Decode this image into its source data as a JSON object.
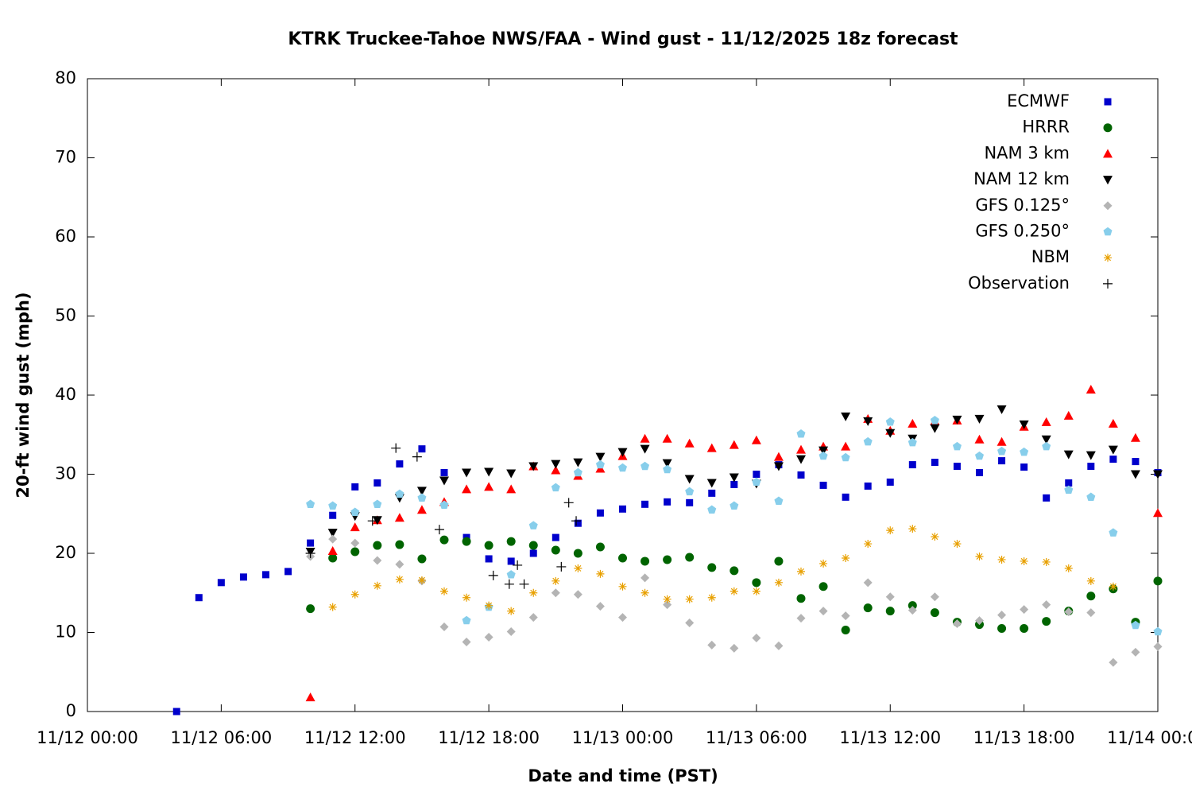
{
  "chart_data": {
    "type": "scatter",
    "title": "KTRK Truckee-Tahoe NWS/FAA - Wind gust - 11/12/2025 18z forecast",
    "xlabel": "Date and time (PST)",
    "ylabel": "20-ft wind gust (mph)",
    "xlim": [
      "11/12 00:00",
      "11/14 00:00"
    ],
    "xticks": [
      "11/12 00:00",
      "11/12 06:00",
      "11/12 12:00",
      "11/12 18:00",
      "11/13 00:00",
      "11/13 06:00",
      "11/13 12:00",
      "11/13 18:00",
      "11/14 00:00"
    ],
    "ylim": [
      0,
      80
    ],
    "yticks": [
      0,
      10,
      20,
      30,
      40,
      50,
      60,
      70,
      80
    ],
    "grid": false,
    "legend": "upper right",
    "series": [
      {
        "name": "ECMWF",
        "color": "#0000cc",
        "marker": "square",
        "x": [
          "11/12 04:00",
          "11/12 05:00",
          "11/12 06:00",
          "11/12 07:00",
          "11/12 08:00",
          "11/12 09:00",
          "11/12 10:00",
          "11/12 11:00",
          "11/12 12:00",
          "11/12 13:00",
          "11/12 14:00",
          "11/12 15:00",
          "11/12 16:00",
          "11/12 17:00",
          "11/12 18:00",
          "11/12 19:00",
          "11/12 20:00",
          "11/12 21:00",
          "11/12 22:00",
          "11/12 23:00",
          "11/13 00:00",
          "11/13 01:00",
          "11/13 02:00",
          "11/13 03:00",
          "11/13 04:00",
          "11/13 05:00",
          "11/13 06:00",
          "11/13 07:00",
          "11/13 08:00",
          "11/13 09:00",
          "11/13 10:00",
          "11/13 11:00",
          "11/13 12:00",
          "11/13 13:00",
          "11/13 14:00",
          "11/13 15:00",
          "11/13 16:00",
          "11/13 17:00",
          "11/13 18:00",
          "11/13 19:00",
          "11/13 20:00",
          "11/13 21:00",
          "11/13 22:00",
          "11/13 23:00",
          "11/14 00:00"
        ],
        "values": [
          0,
          14.4,
          16.3,
          17.0,
          17.3,
          17.7,
          21.3,
          24.8,
          28.4,
          28.9,
          31.3,
          33.2,
          30.2,
          22.0,
          19.3,
          19.0,
          20.0,
          22.0,
          23.8,
          25.1,
          25.6,
          26.2,
          26.5,
          26.4,
          27.6,
          28.7,
          30.0,
          31.2,
          29.9,
          28.6,
          27.1,
          28.5,
          29.0,
          31.2,
          31.5,
          31.0,
          30.2,
          31.7,
          30.9,
          27.0,
          28.9,
          31.0,
          31.9,
          31.6,
          30.2
        ]
      },
      {
        "name": "HRRR",
        "color": "#006400",
        "marker": "circle",
        "x": [
          "11/12 10:00",
          "11/12 11:00",
          "11/12 12:00",
          "11/12 13:00",
          "11/12 14:00",
          "11/12 15:00",
          "11/12 16:00",
          "11/12 17:00",
          "11/12 18:00",
          "11/12 19:00",
          "11/12 20:00",
          "11/12 21:00",
          "11/12 22:00",
          "11/12 23:00",
          "11/13 00:00",
          "11/13 01:00",
          "11/13 02:00",
          "11/13 03:00",
          "11/13 04:00",
          "11/13 05:00",
          "11/13 06:00",
          "11/13 07:00",
          "11/13 08:00",
          "11/13 09:00",
          "11/13 10:00",
          "11/13 11:00",
          "11/13 12:00",
          "11/13 13:00",
          "11/13 14:00",
          "11/13 15:00",
          "11/13 16:00",
          "11/13 17:00",
          "11/13 18:00",
          "11/13 19:00",
          "11/13 20:00",
          "11/13 21:00",
          "11/13 22:00",
          "11/13 23:00",
          "11/14 00:00"
        ],
        "values": [
          13.0,
          19.4,
          20.2,
          21.0,
          21.1,
          19.3,
          21.7,
          21.5,
          21.0,
          21.5,
          21.0,
          20.4,
          20.0,
          20.8,
          19.4,
          19.0,
          19.2,
          19.5,
          18.2,
          17.8,
          16.3,
          19.0,
          14.3,
          15.8,
          10.3,
          13.1,
          12.7,
          13.4,
          12.5,
          11.3,
          11.0,
          10.5,
          10.5,
          11.4,
          12.7,
          14.6,
          15.5,
          11.3,
          16.5
        ]
      },
      {
        "name": "NAM 3 km",
        "color": "#ff0000",
        "marker": "triangle-up",
        "x": [
          "11/12 10:00",
          "11/12 11:00",
          "11/12 12:00",
          "11/12 13:00",
          "11/12 14:00",
          "11/12 15:00",
          "11/12 16:00",
          "11/12 17:00",
          "11/12 18:00",
          "11/12 19:00",
          "11/12 20:00",
          "11/12 21:00",
          "11/12 22:00",
          "11/12 23:00",
          "11/13 00:00",
          "11/13 01:00",
          "11/13 02:00",
          "11/13 03:00",
          "11/13 04:00",
          "11/13 05:00",
          "11/13 06:00",
          "11/13 07:00",
          "11/13 08:00",
          "11/13 09:00",
          "11/13 10:00",
          "11/13 11:00",
          "11/13 12:00",
          "11/13 13:00",
          "11/13 14:00",
          "11/13 15:00",
          "11/13 16:00",
          "11/13 17:00",
          "11/13 18:00",
          "11/13 19:00",
          "11/13 20:00",
          "11/13 21:00",
          "11/13 22:00",
          "11/13 23:00",
          "11/14 00:00"
        ],
        "values": [
          1.8,
          20.3,
          23.3,
          24.2,
          24.5,
          25.5,
          26.5,
          28.1,
          28.4,
          28.1,
          31.0,
          30.5,
          29.8,
          30.7,
          32.3,
          34.5,
          34.5,
          33.9,
          33.3,
          33.7,
          34.3,
          32.2,
          33.1,
          33.5,
          33.5,
          37.0,
          35.5,
          36.4,
          36.7,
          36.8,
          34.4,
          34.1,
          36.0,
          36.6,
          37.4,
          40.7,
          36.4,
          34.6,
          25.1
        ]
      },
      {
        "name": "NAM 12 km",
        "color": "#000000",
        "marker": "triangle-down",
        "x": [
          "11/12 10:00",
          "11/12 11:00",
          "11/12 12:00",
          "11/12 13:00",
          "11/12 14:00",
          "11/12 15:00",
          "11/12 16:00",
          "11/12 17:00",
          "11/12 18:00",
          "11/12 19:00",
          "11/12 20:00",
          "11/12 21:00",
          "11/12 22:00",
          "11/12 23:00",
          "11/13 00:00",
          "11/13 01:00",
          "11/13 02:00",
          "11/13 03:00",
          "11/13 04:00",
          "11/13 05:00",
          "11/13 06:00",
          "11/13 07:00",
          "11/13 08:00",
          "11/13 09:00",
          "11/13 10:00",
          "11/13 11:00",
          "11/13 12:00",
          "11/13 13:00",
          "11/13 14:00",
          "11/13 15:00",
          "11/13 16:00",
          "11/13 17:00",
          "11/13 18:00",
          "11/13 19:00",
          "11/13 20:00",
          "11/13 21:00",
          "11/13 22:00",
          "11/13 23:00",
          "11/14 00:00"
        ],
        "values": [
          20.2,
          22.6,
          24.7,
          24.2,
          27.0,
          27.9,
          29.2,
          30.2,
          30.3,
          30.1,
          31.0,
          31.3,
          31.5,
          32.2,
          32.8,
          33.2,
          31.4,
          29.4,
          28.9,
          29.6,
          28.8,
          31.0,
          31.9,
          33.0,
          37.3,
          36.7,
          35.2,
          34.5,
          35.8,
          36.9,
          37.0,
          38.2,
          36.3,
          34.4,
          32.5,
          32.4,
          33.1,
          30.0,
          30.0
        ]
      },
      {
        "name": "GFS 0.125°",
        "color": "#b4b4b4",
        "marker": "diamond",
        "x": [
          "11/12 10:00",
          "11/12 11:00",
          "11/12 12:00",
          "11/12 13:00",
          "11/12 14:00",
          "11/12 15:00",
          "11/12 16:00",
          "11/12 17:00",
          "11/12 18:00",
          "11/12 19:00",
          "11/12 20:00",
          "11/12 21:00",
          "11/12 22:00",
          "11/12 23:00",
          "11/13 00:00",
          "11/13 01:00",
          "11/13 02:00",
          "11/13 03:00",
          "11/13 04:00",
          "11/13 05:00",
          "11/13 06:00",
          "11/13 07:00",
          "11/13 08:00",
          "11/13 09:00",
          "11/13 10:00",
          "11/13 11:00",
          "11/13 12:00",
          "11/13 13:00",
          "11/13 14:00",
          "11/13 15:00",
          "11/13 16:00",
          "11/13 17:00",
          "11/13 18:00",
          "11/13 19:00",
          "11/13 20:00",
          "11/13 21:00",
          "11/13 22:00",
          "11/13 23:00",
          "11/14 00:00"
        ],
        "values": [
          19.6,
          21.8,
          21.3,
          19.1,
          18.6,
          16.5,
          10.7,
          8.8,
          9.4,
          10.1,
          11.9,
          15.0,
          14.8,
          13.3,
          11.9,
          16.9,
          13.5,
          11.2,
          8.4,
          8.0,
          9.3,
          8.3,
          11.8,
          12.7,
          12.1,
          16.3,
          14.5,
          12.8,
          14.5,
          11.1,
          11.5,
          12.2,
          12.9,
          13.5,
          12.6,
          12.5,
          6.2,
          7.5,
          8.2
        ]
      },
      {
        "name": "GFS 0.250°",
        "color": "#87ceeb",
        "marker": "pentagon",
        "x": [
          "11/12 10:00",
          "11/12 11:00",
          "11/12 12:00",
          "11/12 13:00",
          "11/12 14:00",
          "11/12 15:00",
          "11/12 16:00",
          "11/12 17:00",
          "11/12 18:00",
          "11/12 19:00",
          "11/12 20:00",
          "11/12 21:00",
          "11/12 22:00",
          "11/12 23:00",
          "11/13 00:00",
          "11/13 01:00",
          "11/13 02:00",
          "11/13 03:00",
          "11/13 04:00",
          "11/13 05:00",
          "11/13 06:00",
          "11/13 07:00",
          "11/13 08:00",
          "11/13 09:00",
          "11/13 10:00",
          "11/13 11:00",
          "11/13 12:00",
          "11/13 13:00",
          "11/13 14:00",
          "11/13 15:00",
          "11/13 16:00",
          "11/13 17:00",
          "11/13 18:00",
          "11/13 19:00",
          "11/13 20:00",
          "11/13 21:00",
          "11/13 22:00",
          "11/13 23:00",
          "11/14 00:00"
        ],
        "values": [
          26.2,
          26.0,
          25.2,
          26.2,
          27.5,
          27.0,
          26.1,
          11.5,
          13.2,
          17.3,
          23.5,
          28.3,
          30.2,
          31.2,
          30.8,
          31.0,
          30.6,
          27.8,
          25.5,
          26.0,
          29.0,
          26.6,
          35.1,
          32.3,
          32.1,
          34.1,
          36.6,
          34.0,
          36.8,
          33.5,
          32.3,
          32.9,
          32.8,
          33.5,
          28.0,
          27.1,
          22.6,
          10.9,
          10.1
        ]
      },
      {
        "name": "NBM",
        "color": "#e8a000",
        "marker": "asterisk",
        "x": [
          "11/12 11:00",
          "11/12 12:00",
          "11/12 13:00",
          "11/12 14:00",
          "11/12 15:00",
          "11/12 16:00",
          "11/12 17:00",
          "11/12 18:00",
          "11/12 19:00",
          "11/12 20:00",
          "11/12 21:00",
          "11/12 22:00",
          "11/12 23:00",
          "11/13 00:00",
          "11/13 01:00",
          "11/13 02:00",
          "11/13 03:00",
          "11/13 04:00",
          "11/13 05:00",
          "11/13 06:00",
          "11/13 07:00",
          "11/13 08:00",
          "11/13 09:00",
          "11/13 10:00",
          "11/13 11:00",
          "11/13 12:00",
          "11/13 13:00",
          "11/13 14:00",
          "11/13 15:00",
          "11/13 16:00",
          "11/13 17:00",
          "11/13 18:00",
          "11/13 19:00",
          "11/13 20:00",
          "11/13 21:00",
          "11/13 22:00"
        ],
        "values": [
          13.2,
          14.8,
          15.9,
          16.7,
          16.6,
          15.2,
          14.4,
          13.4,
          12.7,
          15.0,
          16.5,
          18.1,
          17.4,
          15.8,
          15.0,
          14.2,
          14.2,
          14.4,
          15.2,
          15.2,
          16.3,
          17.7,
          18.7,
          19.4,
          21.2,
          22.9,
          23.1,
          22.1,
          21.2,
          19.6,
          19.2,
          19.0,
          18.9,
          18.1,
          16.5,
          15.8
        ]
      },
      {
        "name": "Observation",
        "color": "#000000",
        "marker": "plus",
        "x": [
          "11/12 10:00",
          "11/12 12:47",
          "11/12 13:50",
          "11/12 14:47",
          "11/12 15:47",
          "11/12 18:12",
          "11/12 18:55",
          "11/12 19:17",
          "11/12 19:35",
          "11/12 21:15",
          "11/12 21:35",
          "11/12 21:55"
        ],
        "values": [
          20.0,
          24.1,
          33.3,
          32.2,
          23.0,
          17.2,
          16.1,
          18.5,
          16.1,
          18.3,
          26.4,
          24.1
        ]
      }
    ]
  }
}
